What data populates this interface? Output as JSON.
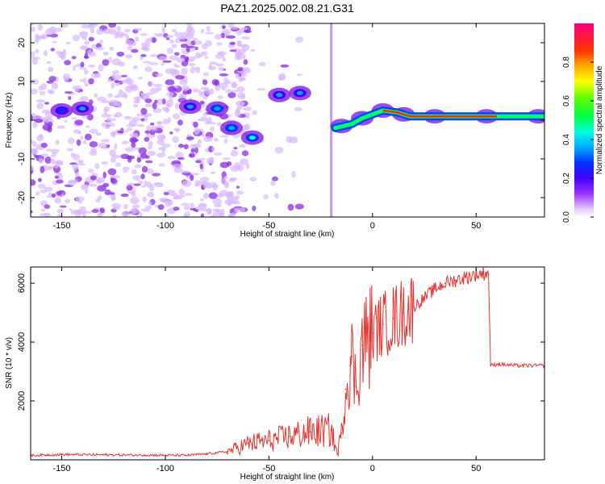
{
  "title": "PAZ1.2025.002.08.21.G31",
  "chart_data": [
    {
      "type": "heatmap",
      "xlabel": "Height of straight line (km)",
      "ylabel": "Frequency (Hz)",
      "colorbar_label": "Normalized spectral amplitude",
      "xlim": [
        -165,
        83
      ],
      "ylim": [
        -25,
        25
      ],
      "x_ticks": [
        -150,
        -100,
        -50,
        0,
        50
      ],
      "x_tick_labels": [
        "-150",
        "-100",
        "-50",
        "0",
        "50"
      ],
      "y_ticks": [
        -20,
        -10,
        0,
        10,
        20
      ],
      "y_tick_labels": [
        "-20",
        "-10",
        "0",
        "10",
        "20"
      ],
      "colorbar_ticks": [
        0.0,
        0.2,
        0.4,
        0.6,
        0.8
      ],
      "colorbar_tick_labels": [
        "0.0",
        "0.2",
        "0.4",
        "0.6",
        "0.8"
      ],
      "colormap": [
        "#ffffff",
        "#cc99ff",
        "#7f00ff",
        "#0000ff",
        "#00ffff",
        "#00ff00",
        "#ffff00",
        "#ff0000",
        "#ff0080"
      ],
      "features": [
        {
          "x": -150,
          "y": 2.5,
          "amp": 0.25
        },
        {
          "x": -140,
          "y": 3.0,
          "amp": 0.3
        },
        {
          "x": -88,
          "y": 3.5,
          "amp": 0.3
        },
        {
          "x": -75,
          "y": 3.0,
          "amp": 0.35
        },
        {
          "x": -68,
          "y": -2.0,
          "amp": 0.35
        },
        {
          "x": -58,
          "y": -4.5,
          "amp": 0.4
        },
        {
          "x": -45,
          "y": 6.5,
          "amp": 0.3
        },
        {
          "x": -35,
          "y": 7.0,
          "amp": 0.3
        },
        {
          "x": -15,
          "y": -1.5,
          "amp": 0.5
        },
        {
          "x": -5,
          "y": 0.5,
          "amp": 0.6
        },
        {
          "x": 5,
          "y": 2.5,
          "amp": 0.85
        },
        {
          "x": 15,
          "y": 1.5,
          "amp": 0.8
        },
        {
          "x": 30,
          "y": 1.0,
          "amp": 0.9
        },
        {
          "x": 55,
          "y": 1.0,
          "amp": 0.8
        },
        {
          "x": 80,
          "y": 1.0,
          "amp": 0.6
        }
      ]
    },
    {
      "type": "line",
      "xlabel": "Height of straight line (km)",
      "ylabel": "SNR (10 * v/v)",
      "xlim": [
        -165,
        83
      ],
      "ylim": [
        0,
        6550
      ],
      "x_ticks": [
        -150,
        -100,
        -50,
        0,
        50
      ],
      "x_tick_labels": [
        "-150",
        "-100",
        "-50",
        "0",
        "50"
      ],
      "y_ticks": [
        2000,
        4000,
        6000
      ],
      "y_tick_labels": [
        "2000",
        "4000",
        "6000"
      ],
      "color": "#e8312d",
      "x": [
        -165,
        -150,
        -130,
        -110,
        -90,
        -80,
        -70,
        -60,
        -50,
        -40,
        -30,
        -20,
        -17,
        -15,
        -13,
        -11,
        -10,
        -8,
        -5,
        0,
        5,
        10,
        15,
        20,
        25,
        30,
        35,
        40,
        45,
        50,
        55,
        56,
        57,
        60,
        70,
        83
      ],
      "y": [
        150,
        180,
        170,
        160,
        150,
        200,
        280,
        550,
        650,
        800,
        950,
        1000,
        200,
        900,
        2400,
        3200,
        3500,
        2500,
        3900,
        4300,
        4600,
        4800,
        5000,
        5200,
        5500,
        5800,
        6000,
        6100,
        6200,
        6300,
        6350,
        6300,
        3200,
        3250,
        3200,
        3200
      ]
    }
  ]
}
